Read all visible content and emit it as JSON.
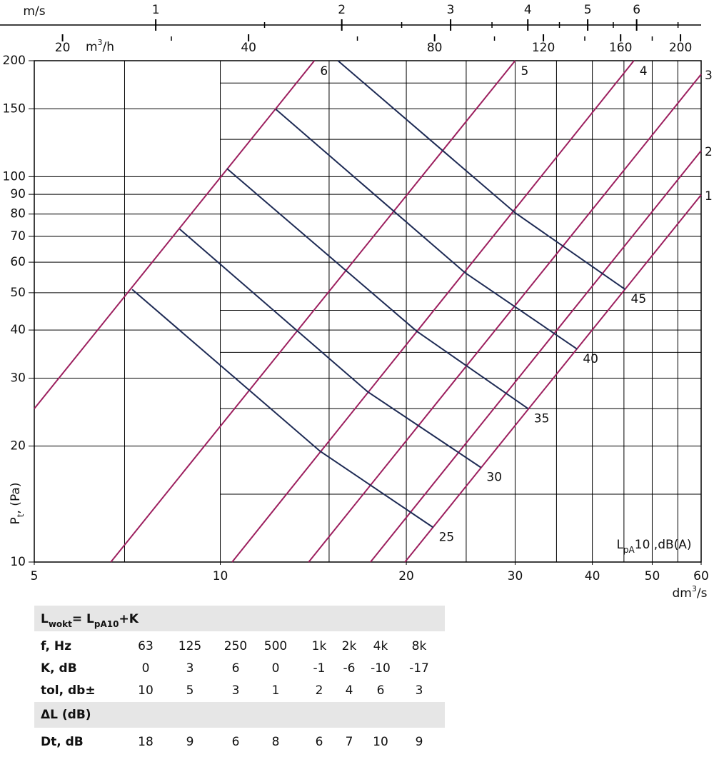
{
  "chart_data": {
    "type": "line",
    "xlim": [
      5,
      60
    ],
    "ylim": [
      10,
      200
    ],
    "log_x": true,
    "log_y": true,
    "xticks": [
      5,
      10,
      20,
      30,
      40,
      50,
      60
    ],
    "x_grid": [
      7,
      15,
      25,
      35,
      45,
      55
    ],
    "yticks": [
      10,
      20,
      30,
      40,
      50,
      60,
      70,
      80,
      90,
      100,
      150,
      200
    ],
    "y_grid_partial": [
      15,
      25,
      35,
      45,
      125,
      175
    ],
    "x_label": [
      {
        "text": "dm"
      },
      {
        "text": "3",
        "sup": true
      },
      {
        "text": "/s"
      }
    ],
    "y_label": [
      {
        "text": "P"
      },
      {
        "text": "t",
        "sub": true
      },
      {
        "text": ", (Pa)"
      }
    ],
    "annotation": [
      {
        "text": "L"
      },
      {
        "text": "pA",
        "sub": true
      },
      {
        "text": "10 ,dB(A)"
      }
    ],
    "annotation_color": "#1e2b55",
    "series": [
      {
        "name": "6",
        "color": "#9c1f5e",
        "x": [
          5,
          14.2
        ],
        "values": [
          25,
          200
        ]
      },
      {
        "name": "5",
        "color": "#9c1f5e",
        "x": [
          6.65,
          30
        ],
        "values": [
          10,
          200
        ]
      },
      {
        "name": "4",
        "color": "#9c1f5e",
        "x": [
          10.45,
          46.7
        ],
        "values": [
          10,
          200
        ]
      },
      {
        "name": "3",
        "color": "#9c1f5e",
        "x": [
          13.9,
          60
        ],
        "values": [
          10,
          184.4
        ]
      },
      {
        "name": "2",
        "color": "#9c1f5e",
        "x": [
          17.5,
          60
        ],
        "values": [
          10,
          116.8
        ]
      },
      {
        "name": "1",
        "color": "#9c1f5e",
        "x": [
          19.9,
          60
        ],
        "values": [
          10,
          89.7
        ]
      },
      {
        "name": "25",
        "color": "#1e2b55",
        "x": [
          7.2,
          14.5,
          22.1
        ],
        "values": [
          51,
          19.4,
          12.3
        ]
      },
      {
        "name": "30",
        "color": "#1e2b55",
        "x": [
          8.6,
          17.3,
          26.4
        ],
        "values": [
          73.1,
          27.7,
          17.6
        ]
      },
      {
        "name": "35",
        "color": "#1e2b55",
        "x": [
          10.25,
          20.8,
          31.5
        ],
        "values": [
          105,
          39.7,
          25
        ]
      },
      {
        "name": "40",
        "color": "#1e2b55",
        "x": [
          12.3,
          24.9,
          37.8
        ],
        "values": [
          149.6,
          56.3,
          35.7
        ]
      },
      {
        "name": "45",
        "color": "#1e2b55",
        "x": [
          15.5,
          30,
          45.2
        ],
        "values": [
          200,
          80.6,
          51
        ]
      }
    ],
    "top_axes": [
      {
        "label": [
          {
            "text": "m/s"
          }
        ],
        "lim": [
          0.636,
          7.63
        ],
        "ticks": [
          1,
          2,
          3,
          4,
          5,
          6
        ],
        "minor_ticks": [
          1.5,
          2.5,
          3.5,
          4.5,
          5.5,
          7
        ]
      },
      {
        "label": [
          {
            "text": "m"
          },
          {
            "text": "3",
            "sup": true
          },
          {
            "text": "/h"
          }
        ],
        "lim": [
          18,
          216
        ],
        "ticks": [
          20,
          40,
          80,
          120,
          160,
          200
        ],
        "minor_ticks": [
          30,
          60,
          100,
          140,
          180
        ]
      }
    ]
  },
  "table": {
    "formula": [
      {
        "text": "L"
      },
      {
        "text": "wokt",
        "sub": true
      },
      {
        "text": "= L"
      },
      {
        "text": "pA10",
        "sub": true
      },
      {
        "text": "+K"
      }
    ],
    "rows": [
      [
        "f, Hz",
        63,
        125,
        250,
        500,
        "1k",
        "2k",
        "4k",
        "8k"
      ],
      [
        "K, dB",
        0,
        3,
        6,
        0,
        -1,
        -6,
        -10,
        -17
      ],
      [
        "tol, db±",
        10,
        5,
        3,
        1,
        2,
        4,
        6,
        3
      ]
    ],
    "section": "ΔL (dB)",
    "section_rows": [
      [
        "Dt, dB",
        18,
        9,
        6,
        8,
        6,
        7,
        10,
        9
      ]
    ]
  }
}
